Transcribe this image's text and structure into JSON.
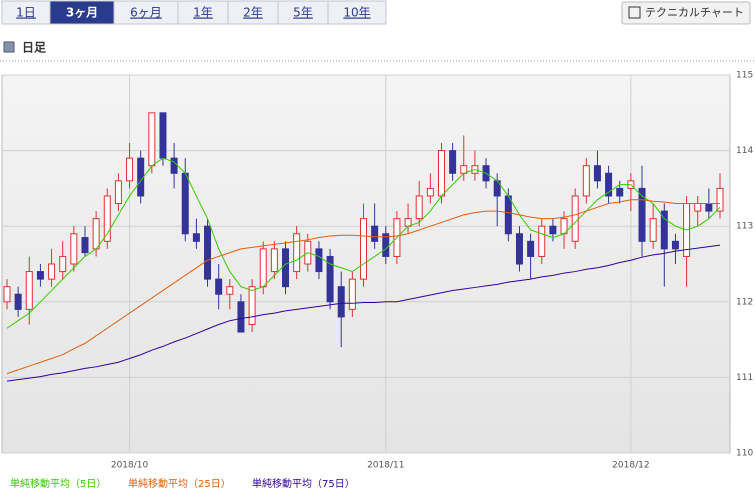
{
  "tabs": [
    "1日",
    "3ヶ月",
    "6ヶ月",
    "1年",
    "2年",
    "5年",
    "10年"
  ],
  "selected_tab": 1,
  "tech_button": "テクニカルチャート",
  "section_title": "日足",
  "chart_data": {
    "type": "candlestick",
    "categories": [
      null,
      null,
      null,
      null,
      null,
      null,
      null,
      null,
      null,
      null,
      null,
      "2018/10",
      null,
      null,
      null,
      null,
      null,
      null,
      null,
      null,
      null,
      null,
      null,
      null,
      null,
      null,
      null,
      null,
      null,
      null,
      null,
      null,
      null,
      null,
      "2018/11",
      null,
      null,
      null,
      null,
      null,
      null,
      null,
      null,
      null,
      null,
      null,
      null,
      null,
      null,
      null,
      null,
      null,
      null,
      null,
      null,
      null,
      "2018/12",
      null,
      null,
      null,
      null,
      null,
      null,
      null,
      null
    ],
    "open": [
      112.0,
      112.1,
      111.9,
      112.4,
      112.3,
      112.4,
      112.5,
      112.85,
      112.7,
      112.8,
      113.3,
      113.6,
      113.9,
      113.8,
      114.5,
      113.9,
      113.7,
      112.9,
      113.0,
      112.3,
      112.1,
      112.0,
      111.7,
      112.2,
      112.4,
      112.7,
      112.4,
      112.5,
      112.7,
      112.6,
      112.2,
      111.9,
      112.3,
      113.0,
      112.9,
      112.6,
      113.0,
      113.1,
      113.4,
      113.4,
      114.0,
      113.7,
      113.7,
      113.8,
      113.6,
      113.4,
      112.9,
      112.8,
      112.6,
      113.0,
      112.9,
      112.8,
      113.4,
      113.8,
      113.7,
      113.5,
      113.5,
      113.5,
      112.8,
      113.2,
      112.8,
      112.6,
      113.2,
      113.3,
      113.2
    ],
    "high": [
      112.3,
      112.2,
      112.6,
      112.5,
      112.7,
      112.8,
      113.0,
      113.0,
      113.2,
      113.5,
      113.7,
      114.1,
      114.0,
      114.5,
      114.5,
      114.1,
      113.9,
      113.1,
      113.1,
      112.5,
      112.3,
      112.1,
      112.3,
      112.8,
      112.8,
      112.8,
      113.0,
      112.9,
      112.8,
      112.7,
      112.4,
      112.4,
      113.3,
      113.3,
      113.0,
      113.2,
      113.3,
      113.6,
      113.7,
      114.1,
      114.1,
      114.2,
      114.0,
      113.9,
      113.7,
      113.5,
      113.0,
      112.9,
      113.1,
      113.1,
      113.2,
      113.5,
      113.9,
      114.0,
      113.8,
      113.6,
      113.7,
      113.8,
      113.3,
      113.3,
      112.9,
      113.4,
      113.4,
      113.5,
      113.7
    ],
    "low": [
      111.9,
      111.8,
      111.7,
      112.2,
      112.2,
      112.3,
      112.4,
      112.6,
      112.6,
      112.7,
      113.2,
      113.5,
      113.3,
      113.7,
      113.8,
      113.5,
      112.8,
      112.7,
      112.2,
      111.9,
      111.9,
      111.6,
      111.6,
      112.1,
      112.3,
      112.1,
      112.3,
      112.4,
      112.3,
      111.9,
      111.4,
      111.8,
      112.2,
      112.7,
      112.5,
      112.5,
      112.9,
      113.0,
      113.3,
      113.3,
      113.6,
      113.6,
      113.6,
      113.5,
      113.0,
      112.8,
      112.4,
      112.3,
      112.5,
      112.8,
      112.7,
      112.7,
      113.3,
      113.5,
      113.3,
      113.3,
      113.2,
      112.6,
      112.7,
      112.2,
      112.5,
      112.2,
      113.0,
      113.1,
      113.1
    ],
    "close": [
      112.2,
      111.9,
      112.4,
      112.3,
      112.5,
      112.6,
      112.9,
      112.65,
      113.1,
      113.4,
      113.6,
      113.9,
      113.4,
      114.5,
      113.9,
      113.7,
      112.9,
      112.8,
      112.3,
      112.1,
      112.2,
      111.6,
      112.2,
      112.7,
      112.7,
      112.2,
      112.9,
      112.8,
      112.4,
      112.0,
      111.8,
      112.3,
      113.1,
      112.8,
      112.6,
      113.1,
      113.1,
      113.4,
      113.5,
      114.0,
      113.7,
      113.8,
      113.8,
      113.6,
      113.4,
      112.9,
      112.5,
      112.6,
      113.0,
      112.9,
      113.1,
      113.4,
      113.8,
      113.6,
      113.4,
      113.4,
      113.6,
      112.8,
      113.1,
      112.7,
      112.7,
      113.3,
      113.3,
      113.2,
      113.5
    ],
    "up_color": "#e03030",
    "down_color": "#333399",
    "series": [
      {
        "name": "単純移動平均（5日）",
        "color": "#33cc00",
        "values": [
          111.65,
          111.75,
          111.85,
          112.0,
          112.15,
          112.3,
          112.45,
          112.6,
          112.7,
          112.9,
          113.15,
          113.4,
          113.6,
          113.8,
          113.9,
          113.85,
          113.7,
          113.4,
          113.1,
          112.7,
          112.4,
          112.2,
          112.15,
          112.2,
          112.35,
          112.5,
          112.55,
          112.65,
          112.6,
          112.5,
          112.45,
          112.4,
          112.5,
          112.6,
          112.7,
          112.85,
          113.0,
          113.05,
          113.2,
          113.4,
          113.55,
          113.7,
          113.75,
          113.7,
          113.6,
          113.4,
          113.15,
          112.95,
          112.9,
          112.85,
          112.9,
          113.05,
          113.2,
          113.35,
          113.45,
          113.55,
          113.55,
          113.4,
          113.3,
          113.1,
          113.0,
          112.95,
          113.0,
          113.1,
          113.25
        ]
      },
      {
        "name": "単純移動平均（25日）",
        "color": "#e06010",
        "values": [
          111.05,
          111.1,
          111.15,
          111.2,
          111.25,
          111.3,
          111.38,
          111.45,
          111.55,
          111.65,
          111.75,
          111.85,
          111.95,
          112.05,
          112.15,
          112.25,
          112.35,
          112.45,
          112.55,
          112.6,
          112.65,
          112.7,
          112.72,
          112.74,
          112.76,
          112.78,
          112.8,
          112.82,
          112.85,
          112.87,
          112.88,
          112.88,
          112.87,
          112.86,
          112.86,
          112.87,
          112.9,
          112.95,
          113.0,
          113.05,
          113.1,
          113.15,
          113.18,
          113.2,
          113.2,
          113.18,
          113.15,
          113.12,
          113.1,
          113.1,
          113.12,
          113.15,
          113.2,
          113.25,
          113.3,
          113.32,
          113.35,
          113.35,
          113.33,
          113.32,
          113.3,
          113.3,
          113.3,
          113.3,
          113.3
        ]
      },
      {
        "name": "単純移動平均（75日）",
        "color": "#330099",
        "values": [
          110.95,
          110.97,
          110.99,
          111.01,
          111.04,
          111.06,
          111.09,
          111.12,
          111.14,
          111.17,
          111.2,
          111.25,
          111.3,
          111.36,
          111.41,
          111.47,
          111.52,
          111.58,
          111.64,
          111.7,
          111.75,
          111.78,
          111.8,
          111.83,
          111.85,
          111.88,
          111.9,
          111.92,
          111.94,
          111.96,
          111.98,
          111.98,
          111.99,
          111.99,
          112.0,
          112.0,
          112.03,
          112.06,
          112.09,
          112.12,
          112.15,
          112.17,
          112.19,
          112.21,
          112.23,
          112.26,
          112.28,
          112.3,
          112.33,
          112.35,
          112.38,
          112.4,
          112.43,
          112.45,
          112.48,
          112.52,
          112.55,
          112.59,
          112.62,
          112.64,
          112.67,
          112.69,
          112.71,
          112.73,
          112.75
        ]
      }
    ],
    "ylim": [
      110,
      115
    ],
    "yticks": [
      110,
      111,
      112,
      113,
      114,
      115
    ],
    "grid": true
  }
}
